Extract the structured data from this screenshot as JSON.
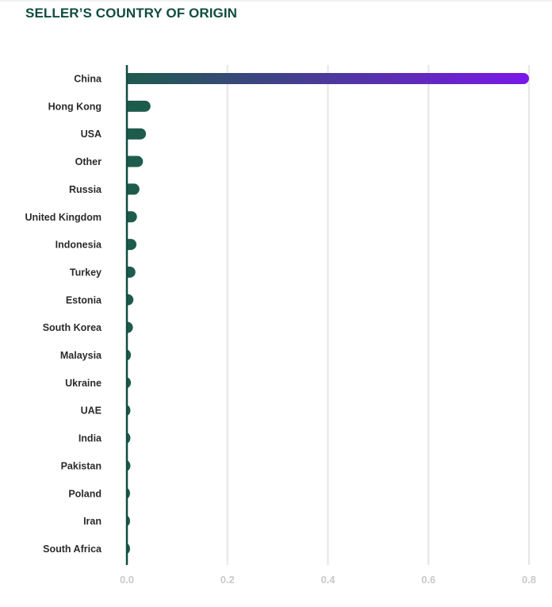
{
  "title": "SELLER’S COUNTRY OF ORIGIN",
  "colors": {
    "title": "#114d3f",
    "bar": "#1d5c4c",
    "highlight_start": "#1d5c4c",
    "highlight_end": "#7a17e8",
    "axis": "#114d3f",
    "grid": "#e6e6e6",
    "tick_label": "#c9c9c9",
    "category_label": "#2b2b2b"
  },
  "chart_data": {
    "type": "bar",
    "orientation": "horizontal",
    "categories": [
      "China",
      "Hong Kong",
      "USA",
      "Other",
      "Russia",
      "United Kingdom",
      "Indonesia",
      "Turkey",
      "Estonia",
      "South Korea",
      "Malaysia",
      "Ukraine",
      "UAE",
      "India",
      "Pakistan",
      "Poland",
      "Iran",
      "South Africa"
    ],
    "values": [
      0.8,
      0.047,
      0.038,
      0.032,
      0.025,
      0.02,
      0.019,
      0.017,
      0.013,
      0.012,
      0.008,
      0.008,
      0.007,
      0.007,
      0.007,
      0.006,
      0.005,
      0.005
    ],
    "xticks": [
      "0.0",
      "0.2",
      "0.4",
      "0.6",
      "0.8"
    ],
    "xlim": [
      0,
      0.8
    ],
    "xlabel": "",
    "ylabel": "",
    "grid": "vertical",
    "highlight_category": "China"
  }
}
